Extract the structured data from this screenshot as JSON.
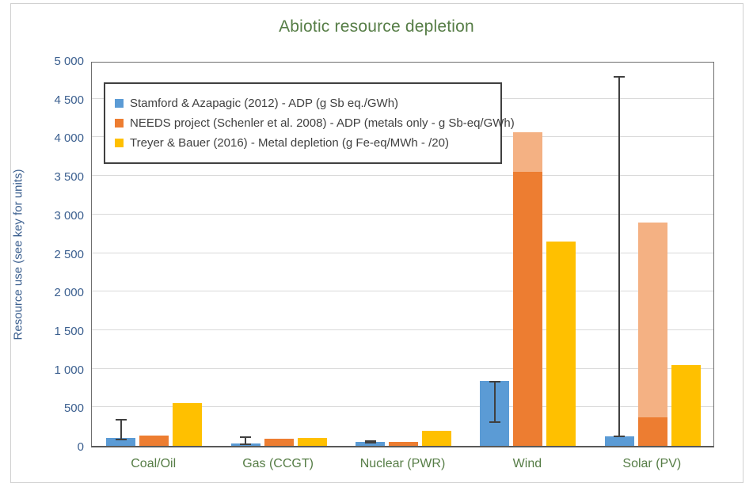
{
  "figure": {
    "border_color": "#d0d0d0"
  },
  "colors": {
    "title_green": "#567d46",
    "axis_text_blue": "#3b5f8f",
    "gridline": "#d9d9d9",
    "plot_border": "#6e6e6e",
    "axis_line": "#595959",
    "error_bar": "#404040",
    "legend_border": "#404040",
    "legend_text": "#404040",
    "series_blue": "#5b9bd5",
    "series_orange": "#ed7d31",
    "series_orange_light": "#f4b183",
    "series_yellow": "#ffc000"
  },
  "chart_data": {
    "type": "bar",
    "title": "Abiotic resource depletion",
    "ylabel": "Resource use (see key for units)",
    "xlabel": "",
    "ylim": [
      0,
      5000
    ],
    "ytick_interval": 500,
    "ytick_labels": [
      "0",
      "500",
      "1 000",
      "1 500",
      "2 000",
      "2 500",
      "3 000",
      "3 500",
      "4 000",
      "4 500",
      "5 000"
    ],
    "grid": true,
    "legend_position": "top-left-inside",
    "categories": [
      "Coal/Oil",
      "Gas (CCGT)",
      "Nuclear (PWR)",
      "Wind",
      "Solar (PV)"
    ],
    "series": [
      {
        "name": "Stamford & Azapagic (2012) - ADP (g Sb eq./GWh)",
        "color_key": "series_blue",
        "values": [
          100,
          30,
          50,
          840,
          120
        ],
        "error_bars": [
          [
            70,
            350
          ],
          [
            10,
            120
          ],
          [
            30,
            75
          ],
          [
            300,
            840
          ],
          [
            110,
            4800
          ]
        ]
      },
      {
        "name": "NEEDS project (Schenler et al. 2008) - ADP (metals only - g Sb-eq/GWh)",
        "color_key": "series_orange",
        "light_color_key": "series_orange_light",
        "values": [
          135,
          90,
          50,
          3550,
          370
        ],
        "range_top": [
          null,
          null,
          null,
          4070,
          2900
        ],
        "range_note": "pale segment shows upper range of estimate"
      },
      {
        "name": "Treyer & Bauer (2016) - Metal depletion (g Fe-eq/MWh - /20)",
        "color_key": "series_yellow",
        "values": [
          550,
          100,
          200,
          2650,
          1050
        ],
        "error_bars": null
      }
    ]
  }
}
